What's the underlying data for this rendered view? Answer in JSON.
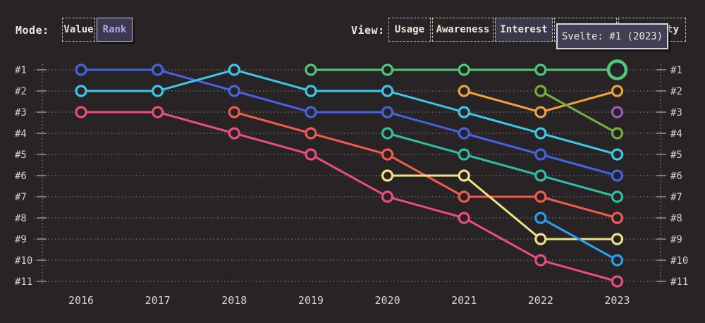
{
  "colors": {
    "background": "#282324",
    "text": "#ece6da",
    "grid": "#ddd6cb",
    "selected_fill": "#3c384b",
    "rank_selected_fill": "#3c3850",
    "rank_selected_text": "#b1a3e4",
    "tooltip_bg": "#423e54",
    "tooltip_border": "#d8d2e6"
  },
  "controls": {
    "mode": {
      "label": "Mode:",
      "options": [
        {
          "label": "Value",
          "selected": false
        },
        {
          "label": "Rank",
          "selected": true
        }
      ]
    },
    "view": {
      "label": "View:",
      "options": [
        {
          "label": "Usage",
          "selected": false
        },
        {
          "label": "Awareness",
          "selected": false
        },
        {
          "label": "Interest",
          "selected": true
        },
        {
          "label": "",
          "selected": false
        },
        {
          "label": "ty",
          "selected": false
        }
      ]
    }
  },
  "tooltip": {
    "text": "Svelte: #1 (2023)"
  },
  "chart_data": {
    "type": "line",
    "subtype": "bump-rank-chart",
    "title": "",
    "x_labels": [
      "2016",
      "2017",
      "2018",
      "2019",
      "2020",
      "2021",
      "2022",
      "2023"
    ],
    "rank_labels": [
      "#1",
      "#2",
      "#3",
      "#4",
      "#5",
      "#6",
      "#7",
      "#8",
      "#9",
      "#10",
      "#11"
    ],
    "rank_axis_mirrored_left_and_right": true,
    "best_rank": 1,
    "worst_rank": 11,
    "grid": "dotted-horizontal",
    "series": [
      {
        "name": "royal-blue",
        "color": "#4563e2",
        "ranks": [
          1,
          1,
          2,
          3,
          3,
          4,
          5,
          6
        ]
      },
      {
        "name": "cyan",
        "color": "#3ec6e8",
        "ranks": [
          2,
          2,
          1,
          2,
          2,
          3,
          4,
          5
        ]
      },
      {
        "name": "magenta-pink",
        "color": "#ea4d82",
        "ranks": [
          3,
          3,
          4,
          5,
          7,
          8,
          10,
          11
        ]
      },
      {
        "name": "coral",
        "color": "#ef5b4f",
        "ranks": [
          null,
          null,
          3,
          4,
          5,
          7,
          7,
          8
        ]
      },
      {
        "name": "Svelte",
        "color": "#4ec878",
        "ranks": [
          null,
          null,
          null,
          1,
          1,
          1,
          1,
          1
        ]
      },
      {
        "name": "teal",
        "color": "#2fbfa7",
        "ranks": [
          null,
          null,
          null,
          null,
          4,
          5,
          6,
          7
        ]
      },
      {
        "name": "khaki-yellow",
        "color": "#f0e283",
        "ranks": [
          null,
          null,
          null,
          null,
          6,
          6,
          9,
          9
        ]
      },
      {
        "name": "amber-orange",
        "color": "#f0a13b",
        "ranks": [
          null,
          null,
          null,
          null,
          null,
          2,
          3,
          2
        ]
      },
      {
        "name": "olive-green",
        "color": "#73ad3e",
        "ranks": [
          null,
          null,
          null,
          null,
          null,
          null,
          2,
          4
        ]
      },
      {
        "name": "sky-blue",
        "color": "#2d9df0",
        "ranks": [
          null,
          null,
          null,
          null,
          null,
          null,
          8,
          10
        ]
      },
      {
        "name": "purple",
        "color": "#9d5cba",
        "ranks": [
          null,
          null,
          null,
          null,
          null,
          null,
          null,
          3
        ]
      }
    ],
    "highlight": {
      "series": "Svelte",
      "x_label": "2023",
      "rank": 1
    }
  }
}
